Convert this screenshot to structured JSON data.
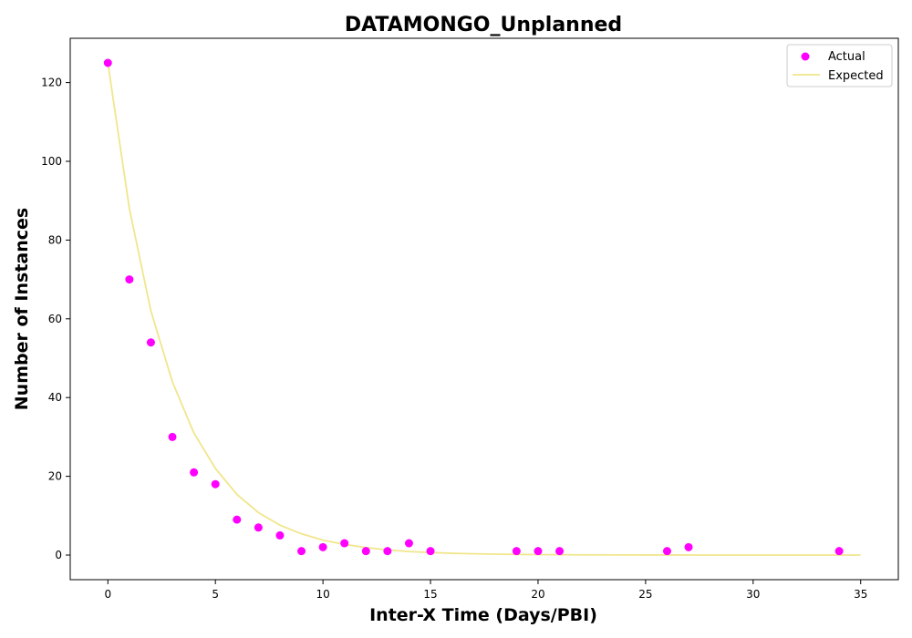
{
  "chart_data": {
    "type": "scatter",
    "title": "DATAMONGO_Unplanned",
    "xlabel": "Inter-X Time (Days/PBI)",
    "ylabel": "Number of Instances",
    "xlim": [
      -1.75,
      36.75
    ],
    "ylim": [
      -6.25,
      131.25
    ],
    "x_ticks": [
      0,
      5,
      10,
      15,
      20,
      25,
      30,
      35
    ],
    "y_ticks": [
      0,
      20,
      40,
      60,
      80,
      100,
      120
    ],
    "grid": false,
    "legend_position": "top-right",
    "series": [
      {
        "name": "Actual",
        "type": "scatter",
        "color": "#ff00ff",
        "points": [
          {
            "x": 0,
            "y": 125
          },
          {
            "x": 1,
            "y": 70
          },
          {
            "x": 2,
            "y": 54
          },
          {
            "x": 3,
            "y": 30
          },
          {
            "x": 4,
            "y": 21
          },
          {
            "x": 5,
            "y": 18
          },
          {
            "x": 6,
            "y": 9
          },
          {
            "x": 7,
            "y": 7
          },
          {
            "x": 8,
            "y": 5
          },
          {
            "x": 9,
            "y": 1
          },
          {
            "x": 10,
            "y": 2
          },
          {
            "x": 11,
            "y": 3
          },
          {
            "x": 12,
            "y": 1
          },
          {
            "x": 13,
            "y": 1
          },
          {
            "x": 14,
            "y": 3
          },
          {
            "x": 15,
            "y": 1
          },
          {
            "x": 19,
            "y": 1
          },
          {
            "x": 20,
            "y": 1
          },
          {
            "x": 21,
            "y": 1
          },
          {
            "x": 26,
            "y": 1
          },
          {
            "x": 27,
            "y": 2
          },
          {
            "x": 34,
            "y": 1
          }
        ]
      },
      {
        "name": "Expected",
        "type": "line",
        "color": "#f0e68c",
        "points": [
          {
            "x": 0,
            "y": 125
          },
          {
            "x": 1,
            "y": 88
          },
          {
            "x": 2,
            "y": 62
          },
          {
            "x": 3,
            "y": 44
          },
          {
            "x": 4,
            "y": 31
          },
          {
            "x": 5,
            "y": 22
          },
          {
            "x": 6,
            "y": 15.4
          },
          {
            "x": 7,
            "y": 10.8
          },
          {
            "x": 8,
            "y": 7.6
          },
          {
            "x": 9,
            "y": 5.4
          },
          {
            "x": 10,
            "y": 3.8
          },
          {
            "x": 11,
            "y": 2.7
          },
          {
            "x": 12,
            "y": 1.9
          },
          {
            "x": 13,
            "y": 1.3
          },
          {
            "x": 14,
            "y": 0.9
          },
          {
            "x": 15,
            "y": 0.65
          },
          {
            "x": 16,
            "y": 0.45
          },
          {
            "x": 17,
            "y": 0.32
          },
          {
            "x": 18,
            "y": 0.23
          },
          {
            "x": 19,
            "y": 0.16
          },
          {
            "x": 20,
            "y": 0.11
          },
          {
            "x": 22,
            "y": 0.06
          },
          {
            "x": 24,
            "y": 0.03
          },
          {
            "x": 26,
            "y": 0.01
          },
          {
            "x": 28,
            "y": 0
          },
          {
            "x": 30,
            "y": 0
          },
          {
            "x": 32,
            "y": 0
          },
          {
            "x": 35,
            "y": 0
          }
        ]
      }
    ]
  }
}
